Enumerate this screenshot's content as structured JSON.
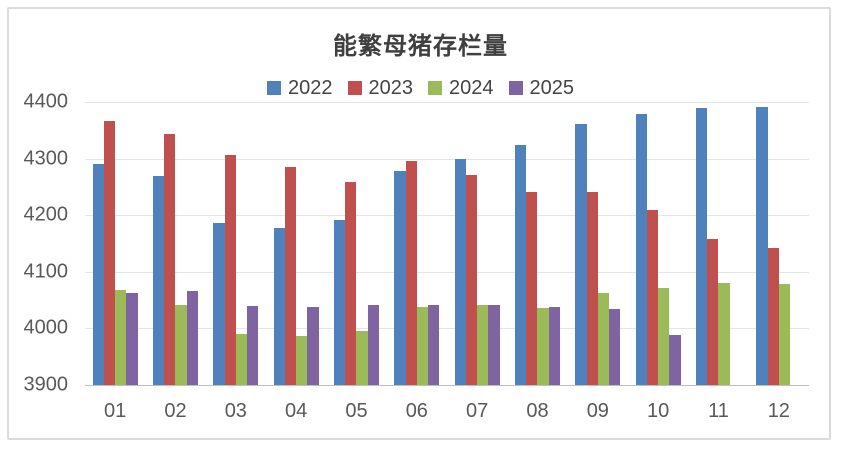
{
  "title": "能繁母猪存栏量",
  "colors": {
    "series_2022": "#4F81BD",
    "series_2023": "#C0504D",
    "series_2024": "#9BBB59",
    "series_2025": "#8064A2",
    "axis_text": "#595959",
    "title_text": "#3F3F3F",
    "gridline": "#E4E4E4",
    "baseline": "#BFBFBF",
    "frame_border": "#DBDBDB"
  },
  "chart_data": {
    "type": "bar",
    "title": "能繁母猪存栏量",
    "categories": [
      "01",
      "02",
      "03",
      "04",
      "05",
      "06",
      "07",
      "08",
      "09",
      "10",
      "11",
      "12"
    ],
    "series": [
      {
        "name": "2022",
        "color": "#4F81BD",
        "values": [
          4290,
          4269,
          4186,
          4177,
          4192,
          4278,
          4299,
          4324,
          4362,
          4379,
          4389,
          4391
        ]
      },
      {
        "name": "2023",
        "color": "#C0504D",
        "values": [
          4367,
          4343,
          4306,
          4285,
          4258,
          4295,
          4271,
          4241,
          4241,
          4210,
          4158,
          4142
        ]
      },
      {
        "name": "2024",
        "color": "#9BBB59",
        "values": [
          4067,
          4042,
          3991,
          3986,
          3996,
          4037,
          4041,
          4036,
          4062,
          4072,
          4080,
          4078
        ]
      },
      {
        "name": "2025",
        "color": "#8064A2",
        "values": [
          4062,
          4066,
          4039,
          4037,
          4042,
          4042,
          4042,
          4037,
          4035,
          3989,
          null,
          null
        ]
      }
    ],
    "xlabel": "",
    "ylabel": "",
    "ylim": [
      3900,
      4400
    ],
    "yticks": [
      3900,
      4000,
      4100,
      4200,
      4300,
      4400
    ],
    "grid": true,
    "legend_position": "top"
  }
}
